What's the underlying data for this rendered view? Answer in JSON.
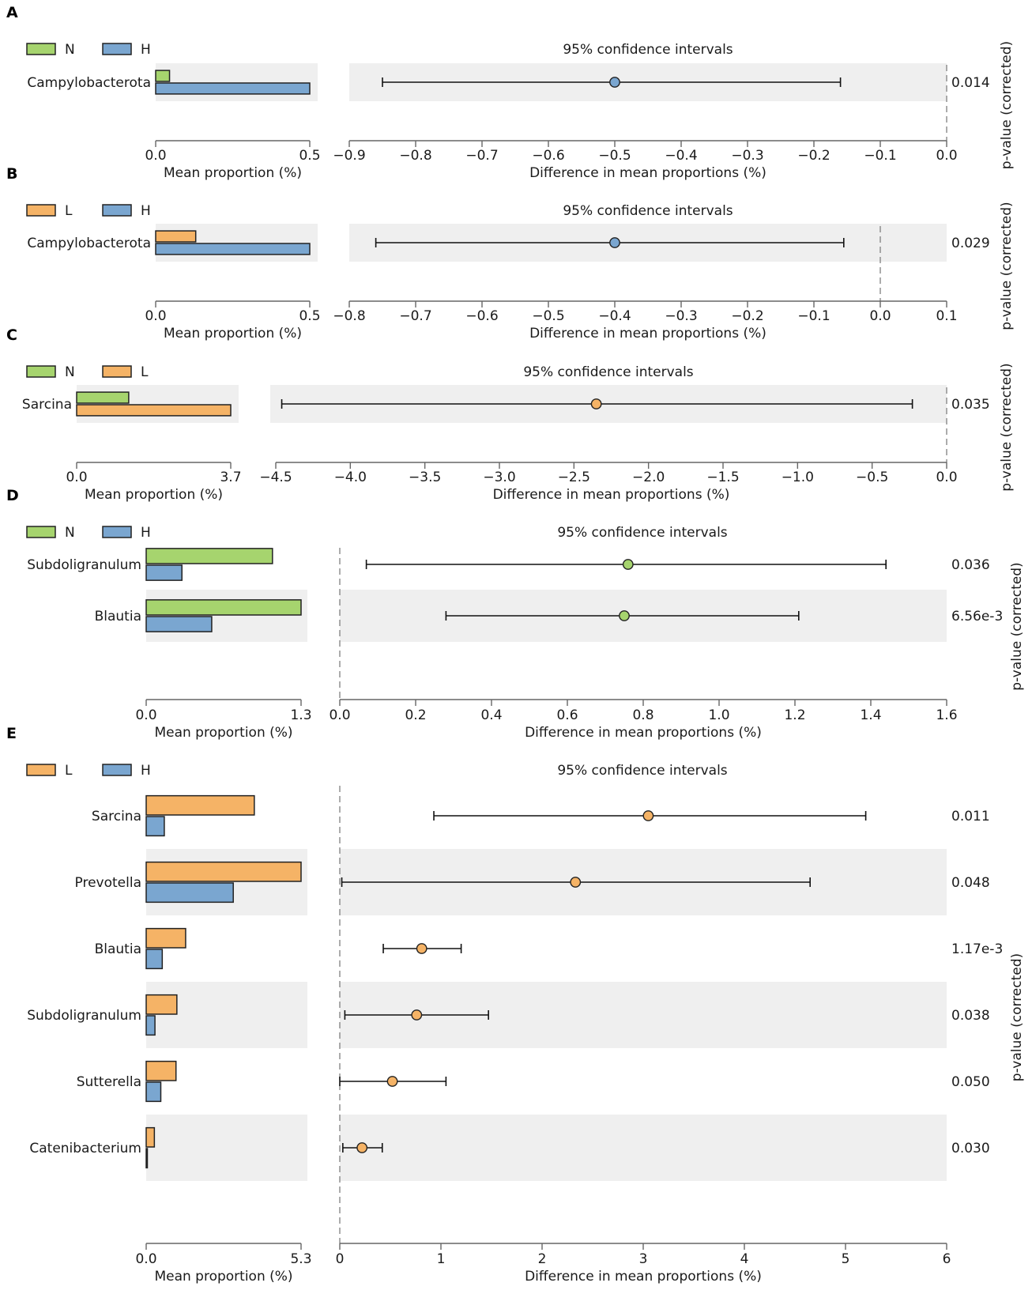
{
  "chart_data": [
    {
      "type": "extended-error-bar",
      "letter": "A",
      "legend": [
        {
          "label": "N",
          "color": "#a6d46e"
        },
        {
          "label": "H",
          "color": "#7aa6d0"
        }
      ],
      "ci_title": "95% confidence intervals",
      "bar_axis": {
        "label": "Mean proportion (%)",
        "ticks": [
          "0.0",
          "0.5"
        ],
        "max": 0.5
      },
      "diff_axis": {
        "label": "Difference in mean proportions (%)",
        "ticks": [
          -0.9,
          -0.8,
          -0.7,
          -0.6,
          -0.5,
          -0.4,
          -0.3,
          -0.2,
          -0.1,
          0.0
        ],
        "tick_labels": [
          "−0.9",
          "−0.8",
          "−0.7",
          "−0.6",
          "−0.5",
          "−0.4",
          "−0.3",
          "−0.2",
          "−0.1",
          "0.0"
        ],
        "xlim": [
          -0.9,
          0.0
        ]
      },
      "pvalue_title": "p-value (corrected)",
      "rows": [
        {
          "label": "Campylobacterota",
          "values": [
            0.045,
            0.5
          ],
          "diff": -0.5,
          "ci": [
            -0.85,
            -0.16
          ],
          "color": "#7aa6d0",
          "pvalue": "0.014",
          "shaded": true
        }
      ]
    },
    {
      "type": "extended-error-bar",
      "letter": "B",
      "legend": [
        {
          "label": "L",
          "color": "#f5b366"
        },
        {
          "label": "H",
          "color": "#7aa6d0"
        }
      ],
      "ci_title": "95% confidence intervals",
      "bar_axis": {
        "label": "Mean proportion (%)",
        "ticks": [
          "0.0",
          "0.5"
        ],
        "max": 0.5
      },
      "diff_axis": {
        "label": "Difference in mean proportions (%)",
        "ticks": [
          -0.8,
          -0.7,
          -0.6,
          -0.5,
          -0.4,
          -0.3,
          -0.2,
          -0.1,
          0.0,
          0.1
        ],
        "tick_labels": [
          "−0.8",
          "−0.7",
          "−0.6",
          "−0.5",
          "−0.4",
          "−0.3",
          "−0.2",
          "−0.1",
          "0.0",
          "0.1"
        ],
        "xlim": [
          -0.8,
          0.1
        ]
      },
      "pvalue_title": "p-value (corrected)",
      "rows": [
        {
          "label": "Campylobacterota",
          "values": [
            0.13,
            0.5
          ],
          "diff": -0.4,
          "ci": [
            -0.76,
            -0.055
          ],
          "color": "#7aa6d0",
          "pvalue": "0.029",
          "shaded": true
        }
      ]
    },
    {
      "type": "extended-error-bar",
      "letter": "C",
      "legend": [
        {
          "label": "N",
          "color": "#a6d46e"
        },
        {
          "label": "L",
          "color": "#f5b366"
        }
      ],
      "ci_title": "95% confidence intervals",
      "bar_axis": {
        "label": "Mean proportion (%)",
        "ticks": [
          "0.0",
          "3.7"
        ],
        "max": 3.7
      },
      "diff_axis": {
        "label": "Difference in mean proportions (%)",
        "ticks": [
          -4.5,
          -4.0,
          -3.5,
          -3.0,
          -2.5,
          -2.0,
          -1.5,
          -1.0,
          -0.5,
          0.0
        ],
        "tick_labels": [
          "−4.5",
          "−4.0",
          "−3.5",
          "−3.0",
          "−2.5",
          "−2.0",
          "−1.5",
          "−1.0",
          "−0.5",
          "0.0"
        ],
        "xlim": [
          -4.5,
          0.0
        ]
      },
      "pvalue_title": "p-value (corrected)",
      "rows": [
        {
          "label": "Sarcina",
          "values": [
            1.25,
            3.7
          ],
          "diff": -2.35,
          "ci": [
            -4.46,
            -0.23
          ],
          "color": "#f5b366",
          "pvalue": "0.035",
          "shaded": true
        }
      ]
    },
    {
      "type": "extended-error-bar",
      "letter": "D",
      "legend": [
        {
          "label": "N",
          "color": "#a6d46e"
        },
        {
          "label": "H",
          "color": "#7aa6d0"
        }
      ],
      "ci_title": "95% confidence intervals",
      "bar_axis": {
        "label": "Mean proportion (%)",
        "ticks": [
          "0.0",
          "1.3"
        ],
        "max": 1.3
      },
      "diff_axis": {
        "label": "Difference in mean proportions (%)",
        "ticks": [
          0.0,
          0.2,
          0.4,
          0.6,
          0.8,
          1.0,
          1.2,
          1.4,
          1.6
        ],
        "tick_labels": [
          "0.0",
          "0.2",
          "0.4",
          "0.6",
          "0.8",
          "1.0",
          "1.2",
          "1.4",
          "1.6"
        ],
        "xlim": [
          0.0,
          1.6
        ]
      },
      "pvalue_title": "p-value (corrected)",
      "rows": [
        {
          "label": "Subdoligranulum",
          "values": [
            1.06,
            0.3
          ],
          "diff": 0.76,
          "ci": [
            0.07,
            1.44
          ],
          "color": "#a6d46e",
          "pvalue": "0.036",
          "shaded": false
        },
        {
          "label": "Blautia",
          "values": [
            1.3,
            0.55
          ],
          "diff": 0.75,
          "ci": [
            0.28,
            1.21
          ],
          "color": "#a6d46e",
          "pvalue": "6.56e-3",
          "shaded": true
        }
      ]
    },
    {
      "type": "extended-error-bar",
      "letter": "E",
      "legend": [
        {
          "label": "L",
          "color": "#f5b366"
        },
        {
          "label": "H",
          "color": "#7aa6d0"
        }
      ],
      "ci_title": "95% confidence intervals",
      "bar_axis": {
        "label": "Mean proportion (%)",
        "ticks": [
          "0.0",
          "5.3"
        ],
        "max": 5.3
      },
      "diff_axis": {
        "label": "Difference in mean proportions (%)",
        "ticks": [
          0,
          1,
          2,
          3,
          4,
          5,
          6
        ],
        "tick_labels": [
          "0",
          "1",
          "2",
          "3",
          "4",
          "5",
          "6"
        ],
        "xlim": [
          0,
          6
        ]
      },
      "pvalue_title": "p-value (corrected)",
      "rows": [
        {
          "label": "Sarcina",
          "values": [
            3.7,
            0.62
          ],
          "diff": 3.05,
          "ci": [
            0.93,
            5.2
          ],
          "color": "#f5b366",
          "pvalue": "0.011",
          "shaded": false
        },
        {
          "label": "Prevotella",
          "values": [
            5.3,
            2.98
          ],
          "diff": 2.33,
          "ci": [
            0.02,
            4.65
          ],
          "color": "#f5b366",
          "pvalue": "0.048",
          "shaded": true
        },
        {
          "label": "Blautia",
          "values": [
            1.35,
            0.55
          ],
          "diff": 0.81,
          "ci": [
            0.43,
            1.2
          ],
          "color": "#f5b366",
          "pvalue": "1.17e-3",
          "shaded": false
        },
        {
          "label": "Subdoligranulum",
          "values": [
            1.05,
            0.3
          ],
          "diff": 0.76,
          "ci": [
            0.05,
            1.47
          ],
          "color": "#f5b366",
          "pvalue": "0.038",
          "shaded": true
        },
        {
          "label": "Sutterella",
          "values": [
            1.02,
            0.5
          ],
          "diff": 0.52,
          "ci": [
            0.0,
            1.05
          ],
          "color": "#f5b366",
          "pvalue": "0.050",
          "shaded": false
        },
        {
          "label": "Catenibacterium",
          "values": [
            0.28,
            0.04
          ],
          "diff": 0.22,
          "ci": [
            0.03,
            0.42
          ],
          "color": "#f5b366",
          "pvalue": "0.030",
          "shaded": true
        }
      ]
    }
  ]
}
